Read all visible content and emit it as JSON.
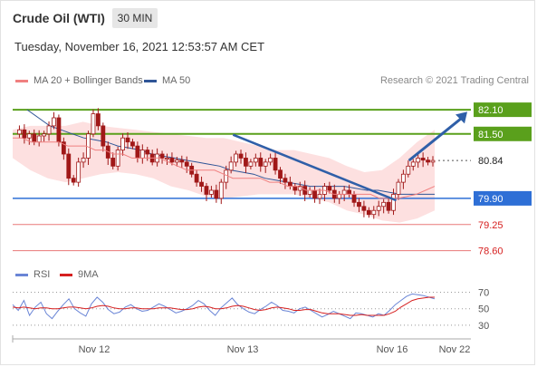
{
  "header": {
    "title": "Crude Oil (WTI)",
    "timeframe": "30 MIN",
    "subtitle": "Tuesday, November 16, 2021 12:53:57 AM CET",
    "credit": "Research © 2021 Trading Central"
  },
  "legend": {
    "ma20_label": "MA 20 + Bollinger Bands",
    "ma50_label": "MA 50",
    "rsi_label": "RSI",
    "ma9_label": "9MA"
  },
  "colors": {
    "ma20": "#f08080",
    "ma50": "#2f5597",
    "bollinger_fill": "#fde0e0",
    "green_level": "#5aa01c",
    "blue_level": "#2e6fd6",
    "red_level": "#e87878",
    "candle": "#a01818",
    "rsi": "#6a85d6",
    "rsi_ma": "#d62020",
    "arrow": "#2f5fa8"
  },
  "chart_data": [
    {
      "type": "candlestick",
      "title": "Crude Oil (WTI)",
      "timeframe": "30 MIN",
      "x_labels": [
        "Nov 12",
        "Nov 13",
        "Nov 16",
        "Nov 22"
      ],
      "ylim": [
        78.3,
        82.35
      ],
      "price_levels": [
        {
          "value": 82.1,
          "label": "82.10",
          "kind": "resistance"
        },
        {
          "value": 81.5,
          "label": "81.50",
          "kind": "resistance"
        },
        {
          "value": 80.84,
          "label": "80.84",
          "kind": "current"
        },
        {
          "value": 79.9,
          "label": "79.90",
          "kind": "pivot"
        },
        {
          "value": 79.25,
          "label": "79.25",
          "kind": "support"
        },
        {
          "value": 78.6,
          "label": "78.60",
          "kind": "support"
        }
      ],
      "trendline": {
        "from": {
          "x": 0.52,
          "y": 81.48
        },
        "to": {
          "x": 0.905,
          "y": 79.85
        }
      },
      "projection_arrow": {
        "from": {
          "x": 0.935,
          "y": 80.84
        },
        "to": {
          "x": 1.0,
          "y": 82.05
        }
      },
      "close_series": [
        81.5,
        81.6,
        81.4,
        81.5,
        81.3,
        81.45,
        81.5,
        81.7,
        81.9,
        81.3,
        81.0,
        80.4,
        80.3,
        80.8,
        80.9,
        81.5,
        82.0,
        81.7,
        81.2,
        80.9,
        80.7,
        81.1,
        81.4,
        81.3,
        81.2,
        80.9,
        81.1,
        81.0,
        80.8,
        81.0,
        80.9,
        80.9,
        80.8,
        80.85,
        80.8,
        80.7,
        80.5,
        80.3,
        80.2,
        80.0,
        80.1,
        79.9,
        80.3,
        80.6,
        80.8,
        81.0,
        80.9,
        80.7,
        80.8,
        80.9,
        80.7,
        80.8,
        80.9,
        80.6,
        80.4,
        80.3,
        80.2,
        80.1,
        80.2,
        80.0,
        80.1,
        79.9,
        80.0,
        80.2,
        80.1,
        79.9,
        80.0,
        80.1,
        80.0,
        79.8,
        79.7,
        79.6,
        79.5,
        79.6,
        79.7,
        79.8,
        79.6,
        80.0,
        80.3,
        80.5,
        80.7,
        80.8,
        80.9,
        80.85,
        80.8,
        80.84
      ],
      "ma20_series": [
        81.4,
        81.4,
        81.3,
        81.3,
        81.3,
        81.3,
        81.2,
        81.2,
        81.2,
        81.1,
        81.1,
        81.0,
        81.0,
        80.9,
        80.9,
        80.9,
        80.9,
        80.8,
        80.7,
        80.6,
        80.6,
        80.6,
        80.6,
        80.5,
        80.4,
        80.4,
        80.4,
        80.4,
        80.3,
        80.3,
        80.2,
        80.2,
        80.1,
        80.1,
        80.1,
        80.0,
        80.0,
        80.0,
        80.0,
        80.0,
        79.9,
        79.9,
        79.9,
        79.95,
        80.0,
        80.1,
        80.2
      ],
      "ma50_series": [
        82.1,
        81.9,
        81.7,
        81.6,
        81.5,
        81.4,
        81.35,
        81.3,
        81.2,
        81.15,
        81.1,
        81.0,
        80.95,
        80.9,
        80.85,
        80.8,
        80.75,
        80.7,
        80.6,
        80.55,
        80.5,
        80.4,
        80.35,
        80.3,
        80.25,
        80.2,
        80.2,
        80.2,
        80.2,
        80.15,
        80.1,
        80.1,
        80.05,
        80.0,
        80.0,
        80.0,
        80.0
      ],
      "bollinger_upper": [
        81.6,
        81.7,
        81.7,
        81.7,
        81.8,
        81.7,
        81.65,
        81.6,
        81.55,
        81.5,
        81.45,
        81.4,
        81.4,
        81.3,
        81.2,
        81.1,
        81.1,
        81.0,
        80.9,
        80.7,
        80.55,
        80.6,
        80.9,
        81.3,
        81.6
      ],
      "bollinger_lower": [
        80.9,
        80.6,
        80.4,
        80.3,
        80.4,
        80.5,
        80.55,
        80.5,
        80.4,
        80.2,
        80.1,
        79.95,
        79.9,
        79.95,
        80.0,
        80.0,
        80.0,
        79.9,
        79.8,
        79.6,
        79.5,
        79.35,
        79.3,
        79.4,
        79.6
      ]
    },
    {
      "type": "line",
      "title": "RSI",
      "yticks": [
        70,
        50,
        30
      ],
      "ylim": [
        20,
        75
      ],
      "series": [
        {
          "name": "RSI",
          "values": [
            55,
            48,
            60,
            42,
            52,
            58,
            44,
            38,
            47,
            55,
            62,
            50,
            45,
            41,
            56,
            64,
            58,
            49,
            44,
            46,
            52,
            55,
            50,
            47,
            48,
            52,
            56,
            53,
            49,
            45,
            47,
            50,
            54,
            60,
            56,
            48,
            42,
            51,
            57,
            63,
            55,
            50,
            46,
            44,
            49,
            53,
            58,
            54,
            48,
            47,
            45,
            50,
            52,
            48,
            44,
            40,
            43,
            47,
            44,
            41,
            38,
            45,
            44,
            42,
            40,
            44,
            42,
            48,
            55,
            60,
            65,
            68,
            67,
            66,
            64,
            62
          ]
        },
        {
          "name": "9MA",
          "values": [
            52,
            51,
            52,
            51,
            50,
            51,
            51,
            50,
            50,
            51,
            52,
            52,
            51,
            50,
            51,
            53,
            54,
            53,
            51,
            50,
            50,
            51,
            51,
            50,
            50,
            50,
            51,
            51,
            51,
            50,
            49,
            49,
            50,
            52,
            53,
            52,
            50,
            50,
            51,
            53,
            54,
            53,
            51,
            49,
            48,
            49,
            51,
            52,
            51,
            50,
            48,
            48,
            49,
            49,
            47,
            45,
            44,
            44,
            44,
            43,
            42,
            42,
            43,
            42,
            42,
            42,
            42,
            44,
            47,
            52,
            56,
            60,
            62,
            63,
            64,
            64
          ]
        }
      ]
    }
  ]
}
